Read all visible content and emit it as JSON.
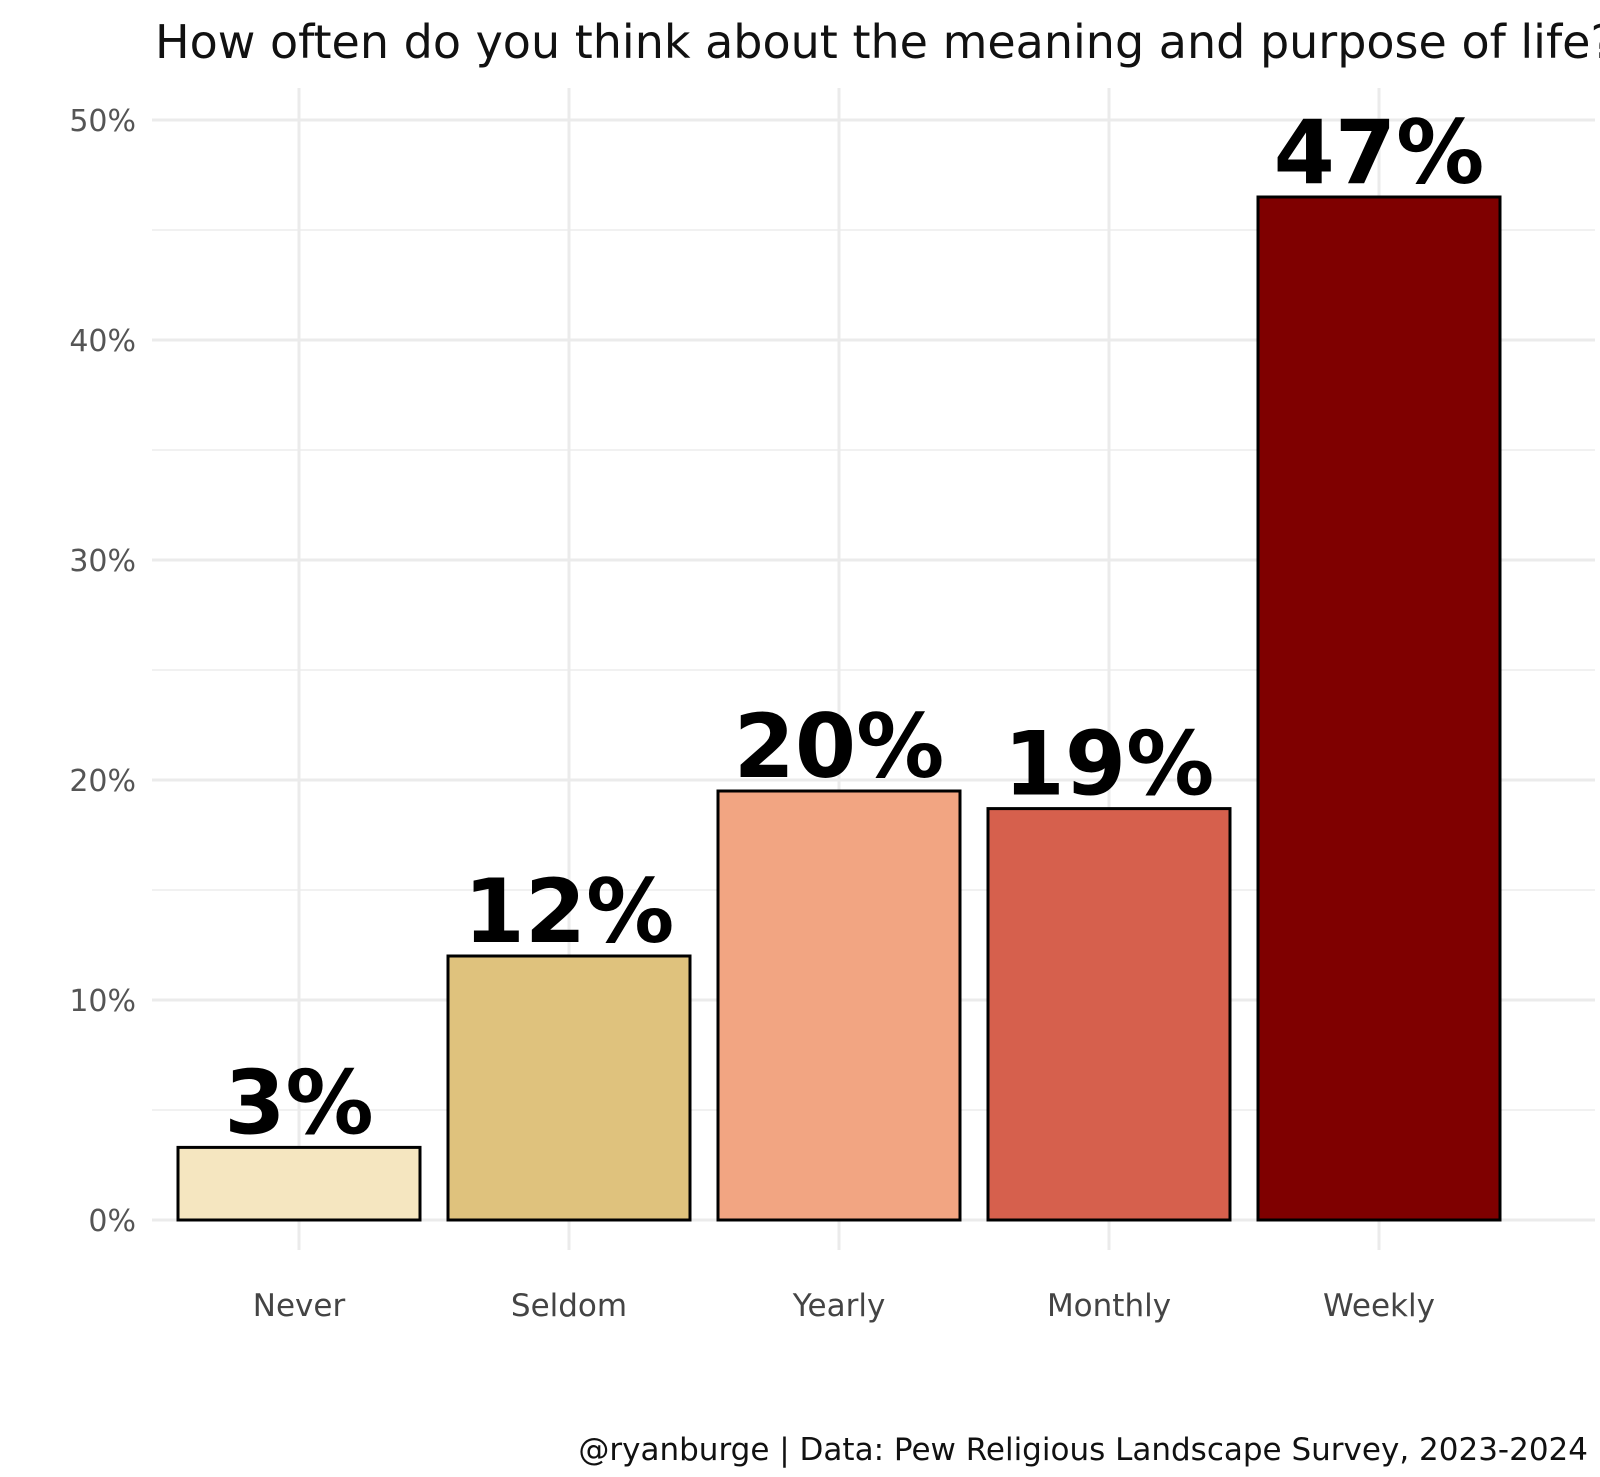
{
  "chart_data": {
    "type": "bar",
    "title": "How often do you think about the meaning and purpose of life?",
    "caption": "@ryanburge | Data: Pew Religious Landscape Survey, 2023-2024",
    "categories": [
      "Never",
      "Seldom",
      "Yearly",
      "Monthly",
      "Weekly"
    ],
    "values": [
      3.3,
      12.0,
      19.5,
      18.7,
      46.5
    ],
    "data_labels": [
      "3%",
      "12%",
      "20%",
      "19%",
      "47%"
    ],
    "colors": [
      "#f5e6c0",
      "#dfc27d",
      "#f2a582",
      "#d6604d",
      "#7f0000"
    ],
    "ylim": [
      0,
      50
    ],
    "yticks": [
      0,
      10,
      20,
      30,
      40,
      50
    ],
    "ytick_labels": [
      "0%",
      "10%",
      "20%",
      "30%",
      "40%",
      "50%"
    ],
    "grid": true,
    "legend": "none"
  }
}
